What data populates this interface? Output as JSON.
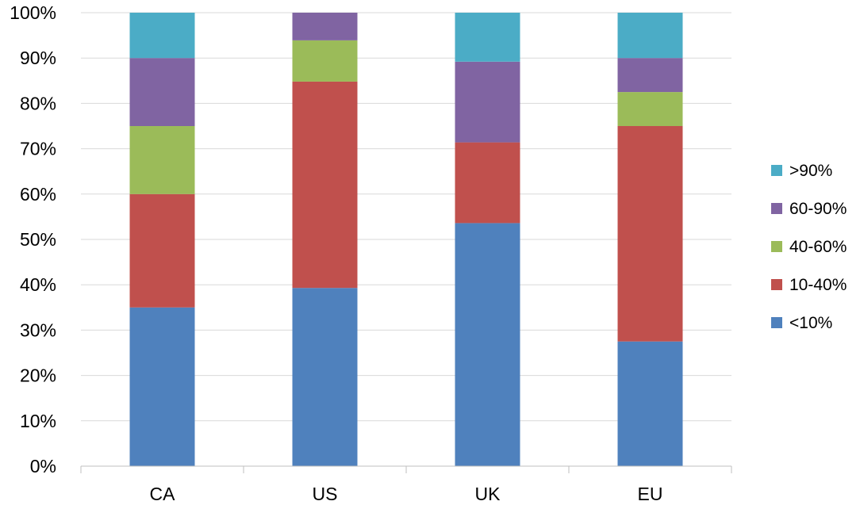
{
  "chart_data": {
    "type": "bar",
    "stacked": true,
    "categories": [
      "CA",
      "US",
      "UK",
      "EU"
    ],
    "series": [
      {
        "name": "<10%",
        "color": "#4F81BD",
        "values": [
          35,
          39.3,
          53.6,
          27.5
        ]
      },
      {
        "name": "10-40%",
        "color": "#C0504D",
        "values": [
          25,
          45.5,
          17.8,
          47.5
        ]
      },
      {
        "name": "40-60%",
        "color": "#9BBB59",
        "values": [
          15,
          9.1,
          0,
          7.5
        ]
      },
      {
        "name": "60-90%",
        "color": "#8064A2",
        "values": [
          15,
          6.1,
          17.8,
          7.5
        ]
      },
      {
        "name": ">90%",
        "color": "#4BACC6",
        "values": [
          10,
          0,
          10.8,
          10
        ]
      }
    ],
    "yticks": [
      "0%",
      "10%",
      "20%",
      "30%",
      "40%",
      "50%",
      "60%",
      "70%",
      "80%",
      "90%",
      "100%"
    ],
    "ylim": [
      0,
      100
    ],
    "grid": true,
    "legend_position": "right"
  }
}
